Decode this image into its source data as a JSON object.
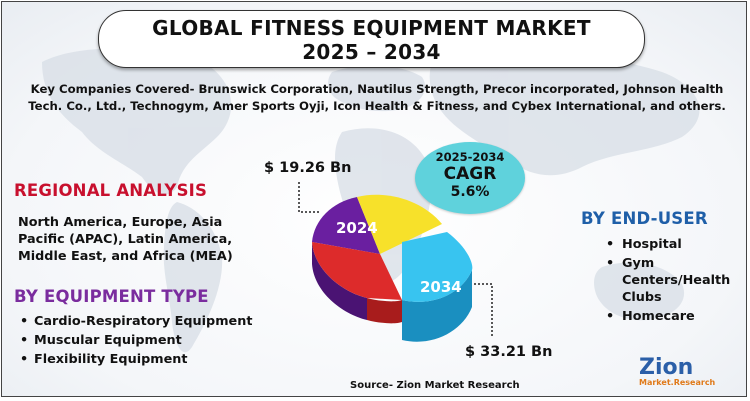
{
  "title": {
    "line1": "GLOBAL FITNESS EQUIPMENT MARKET",
    "line2": "2025 – 2034"
  },
  "companies_text": "Key Companies Covered- Brunswick Corporation, Nautilus Strength, Precor incorporated, Johnson Health Tech. Co., Ltd., Technogym, Amer Sports Oyji, Icon Health & Fitness, and Cybex International, and others.",
  "regional": {
    "heading": "REGIONAL ANALYSIS",
    "text": "North America, Europe, Asia Pacific (APAC), Latin America, Middle East, and Africa (MEA)"
  },
  "equipment_type": {
    "heading": "BY EQUIPMENT TYPE",
    "items": [
      "Cardio-Respiratory Equipment",
      "Muscular Equipment",
      "Flexibility Equipment"
    ]
  },
  "end_user": {
    "heading": "BY END-USER",
    "items": [
      "Hospital",
      "Gym Centers/Health Clubs",
      "Homecare"
    ]
  },
  "cagr": {
    "years": "2025-2034",
    "label": "CAGR",
    "value": "5.6%"
  },
  "market_values": {
    "year_2024": "2024",
    "value_2024": "$ 19.26 Bn",
    "year_2034": "2034",
    "value_2034": "$ 33.21 Bn"
  },
  "source": "Source- Zion Market Research",
  "logo": {
    "word": "Zion",
    "sub": "Market.Research"
  },
  "colors": {
    "regional_heading": "#c8102e",
    "equipment_heading": "#7a2c9e",
    "enduser_heading": "#1f5fa8",
    "cagr_bubble": "#5fd2dc",
    "pie_purple": "#6a1fa0",
    "pie_yellow": "#f7e12a",
    "pie_red": "#dd2b2b",
    "pie_blue": "#38c4f0"
  }
}
